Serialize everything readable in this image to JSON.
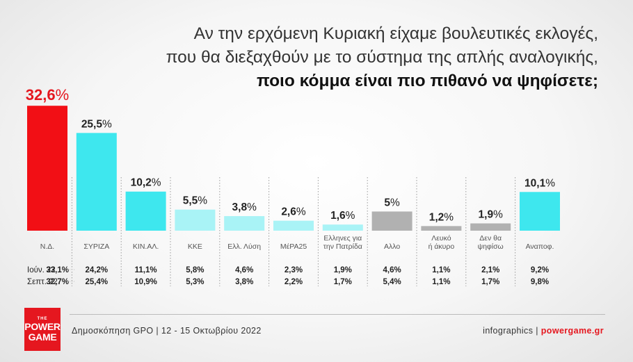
{
  "header": {
    "title_line1": "Αν την ερχόμενη Κυριακή είχαμε βουλευτικές εκλογές,",
    "title_line2": "που θα διεξαχθούν με το σύστημα της απλής αναλογικής,",
    "title_line3": "ποιο κόμμα είναι πιο πιθανό να ψηφίσετε;"
  },
  "chart_data": {
    "type": "bar",
    "title": "Αν την ερχόμενη Κυριακή είχαμε βουλευτικές εκλογές, που θα διεξαχθούν με το σύστημα της απλής αναλογικής, ποιο κόμμα είναι πιο πιθανό να ψηφίσετε;",
    "categories": [
      "Ν.Δ.",
      "ΣΥΡΙΖΑ",
      "ΚΙΝ.ΑΛ.",
      "ΚΚΕ",
      "Ελλ. Λύση",
      "ΜέΡΑ25",
      "Ελληνες για την Πατρίδα",
      "Αλλο",
      "Λευκό ή άκυρο",
      "Δεν θα ψηφίσω",
      "Αναποφ."
    ],
    "category_lines": [
      [
        "Ν.Δ."
      ],
      [
        "ΣΥΡΙΖΑ"
      ],
      [
        "ΚΙΝ.ΑΛ."
      ],
      [
        "ΚΚΕ"
      ],
      [
        "Ελλ. Λύση"
      ],
      [
        "ΜέΡΑ25"
      ],
      [
        "Ελληνες για",
        "την Πατρίδα"
      ],
      [
        "Αλλο"
      ],
      [
        "Λευκό",
        "ή άκυρο"
      ],
      [
        "Δεν θα",
        "ψηφίσω"
      ],
      [
        "Αναποφ."
      ]
    ],
    "values": [
      32.6,
      25.5,
      10.2,
      5.5,
      3.8,
      2.6,
      1.6,
      5,
      1.2,
      1.9,
      10.1
    ],
    "value_labels": [
      "32,6",
      "25,5",
      "10,2",
      "5,5",
      "3,8",
      "2,6",
      "1,6",
      "5",
      "1,2",
      "1,9",
      "10,1"
    ],
    "value_suffix": "%",
    "colors": [
      "#f20f15",
      "#3ee7ee",
      "#3ee7ee",
      "#a9f3f6",
      "#a9f3f6",
      "#a9f3f6",
      "#a9f3f6",
      "#b1b1b1",
      "#b1b1b1",
      "#b1b1b1",
      "#3ee7ee"
    ],
    "value_label_colors": [
      "#e5171f",
      "#222222",
      "#222222",
      "#222222",
      "#222222",
      "#222222",
      "#222222",
      "#222222",
      "#222222",
      "#222222",
      "#222222"
    ],
    "ylim": [
      0,
      33
    ],
    "comparison": [
      {
        "label": "Ιούν. 22",
        "values": [
          "33,1%",
          "24,2%",
          "11,1%",
          "5,8%",
          "4,6%",
          "2,3%",
          "1,9%",
          "4,6%",
          "1,1%",
          "2,1%",
          "9,2%"
        ]
      },
      {
        "label": "Σεπτ. 22",
        "values": [
          "32,7%",
          "25,4%",
          "10,9%",
          "5,3%",
          "3,8%",
          "2,2%",
          "1,7%",
          "5,4%",
          "1,1%",
          "1,7%",
          "9,8%"
        ]
      }
    ]
  },
  "footer": {
    "logo_top": "THE",
    "logo_line1": "POWER",
    "logo_line2": "GAME",
    "source": "Δημοσκόπηση GPO | 12 - 15 Οκτωβρίου 2022",
    "credit_prefix": "infographics",
    "credit_sep": "|",
    "credit_site": "powergame.gr"
  }
}
